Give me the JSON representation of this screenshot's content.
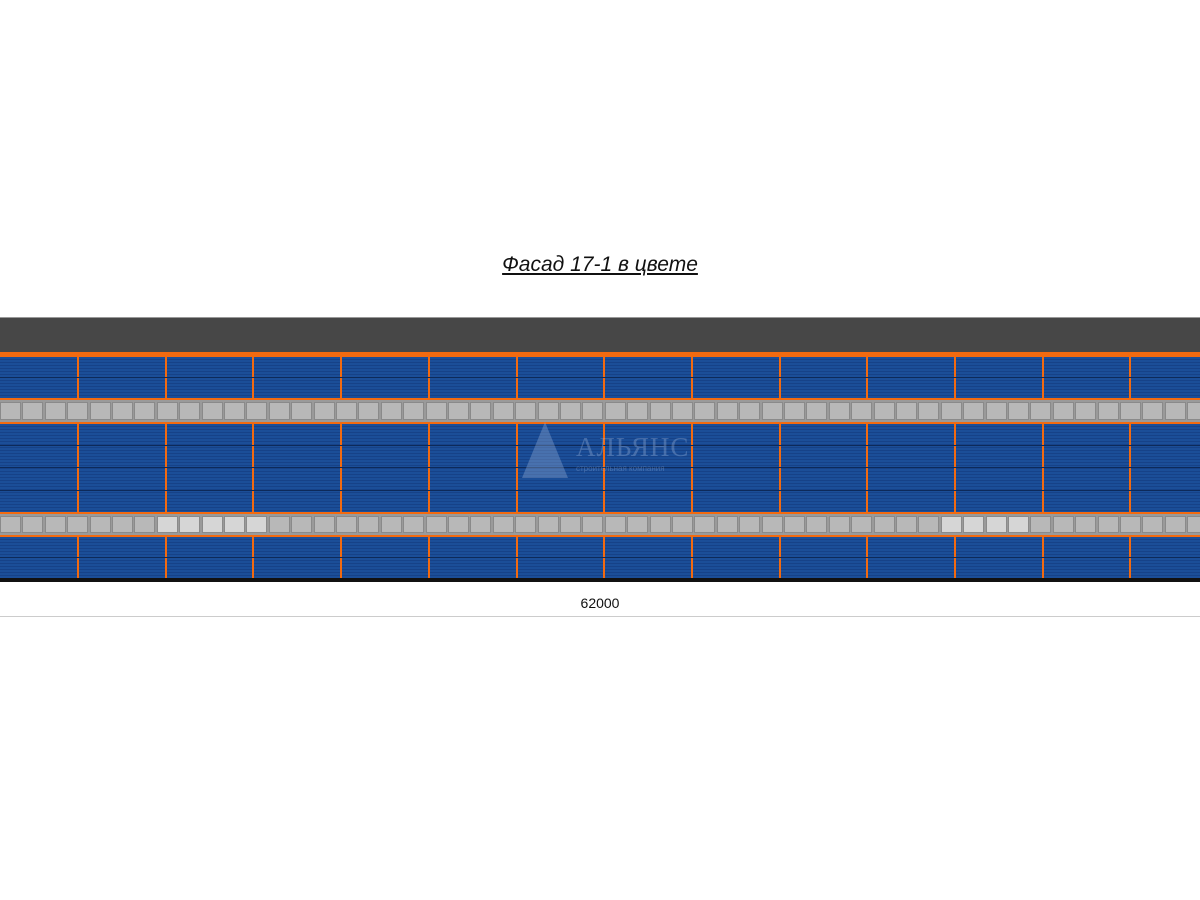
{
  "title": "Фасад 17-1 в цвете",
  "dimension": "62000",
  "watermark": {
    "name": "АЛЬЯНС",
    "subtitle": "строительная компания"
  },
  "colors": {
    "roof": "#474747",
    "trim": "#f26a10",
    "cladding": "#1b4e98",
    "windows": "#b8b8b8",
    "base": "#111111"
  }
}
